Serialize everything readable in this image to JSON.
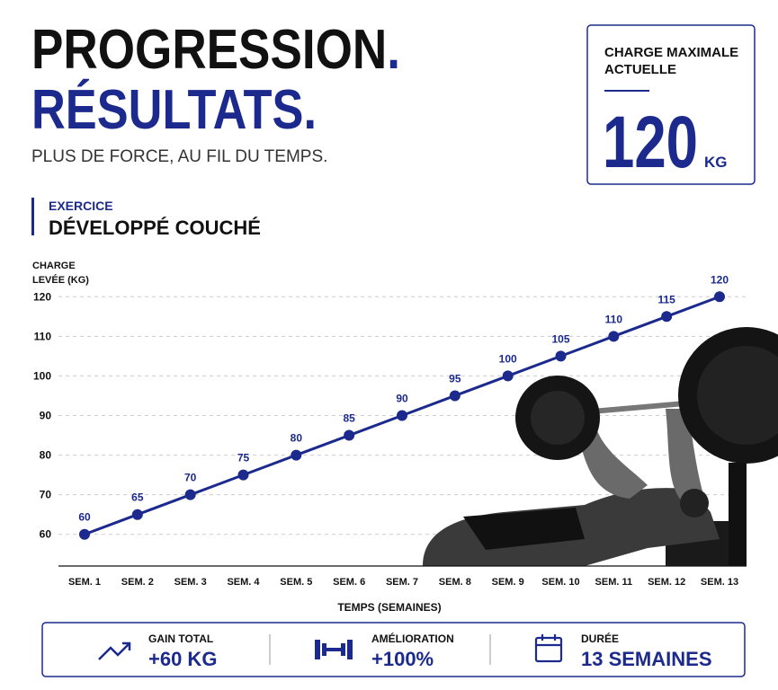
{
  "header": {
    "title_lines": [
      {
        "text": "PROGRESSION",
        "mark": "."
      },
      {
        "text": "RÉSULTATS",
        "mark": "."
      }
    ],
    "subtitle": "PLUS DE FORCE, AU FIL DU TEMPS."
  },
  "max_box": {
    "label": [
      "CHARGE MAXIMALE",
      "ACTUELLE"
    ],
    "value": "120",
    "unit": "KG"
  },
  "exercise": {
    "label": "EXERCICE",
    "name": "DÉVELOPPÉ COUCHÉ"
  },
  "chart_data": {
    "type": "line",
    "ylabel": [
      "CHARGE",
      "LEVÉE (KG)"
    ],
    "xlabel": "TEMPS (SEMAINES)",
    "categories": [
      "SEM. 1",
      "SEM. 2",
      "SEM. 3",
      "SEM. 4",
      "SEM. 5",
      "SEM. 6",
      "SEM. 7",
      "SEM. 8",
      "SEM. 9",
      "SEM. 10",
      "SEM. 11",
      "SEM. 12",
      "SEM. 13"
    ],
    "values": [
      60,
      65,
      70,
      75,
      80,
      85,
      90,
      95,
      100,
      105,
      110,
      115,
      120
    ],
    "color": "#1b2a8c",
    "ylim": [
      52,
      128
    ],
    "yticks": [
      60,
      70,
      80,
      90,
      100,
      110,
      120
    ],
    "grid": true
  },
  "stats": [
    {
      "label": "GAIN TOTAL",
      "value": "+60 KG"
    },
    {
      "label": "AMÉLIORATION",
      "value": "+100%"
    },
    {
      "label": "DURÉE",
      "value": "13 SEMAINES"
    }
  ]
}
